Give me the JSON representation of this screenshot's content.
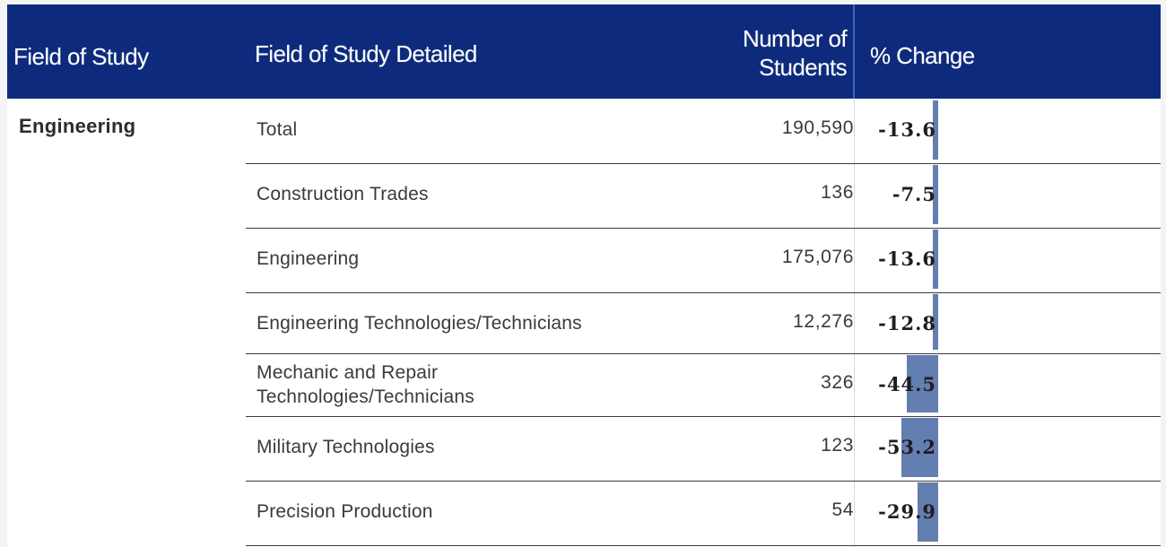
{
  "header": {
    "field_of_study": "Field of Study",
    "field_of_study_detailed": "Field of Study Detailed",
    "number_of_students_line1": "Number of",
    "number_of_students_line2": "Students",
    "percent_change": "% Change"
  },
  "field": "Engineering",
  "rows": [
    {
      "detailed_line1": "Total",
      "detailed_line2": "",
      "students": "190,590",
      "change": "-13.6",
      "change_value": -13.6
    },
    {
      "detailed_line1": "Construction Trades",
      "detailed_line2": "",
      "students": "136",
      "change": "-7.5",
      "change_value": -7.5
    },
    {
      "detailed_line1": "Engineering",
      "detailed_line2": "",
      "students": "175,076",
      "change": "-13.6",
      "change_value": -13.6
    },
    {
      "detailed_line1": "Engineering Technologies/Technicians",
      "detailed_line2": "",
      "students": "12,276",
      "change": "-12.8",
      "change_value": -12.8
    },
    {
      "detailed_line1": "Mechanic and Repair",
      "detailed_line2": "Technologies/Technicians",
      "students": "326",
      "change": "-44.5",
      "change_value": -44.5
    },
    {
      "detailed_line1": "Military Technologies",
      "detailed_line2": "",
      "students": "123",
      "change": "-53.2",
      "change_value": -53.2
    },
    {
      "detailed_line1": "Precision Production",
      "detailed_line2": "",
      "students": "54",
      "change": "-29.9",
      "change_value": -29.9
    }
  ],
  "colors": {
    "header_bg": "#0d2a7c",
    "bar": "#5b77ad"
  }
}
